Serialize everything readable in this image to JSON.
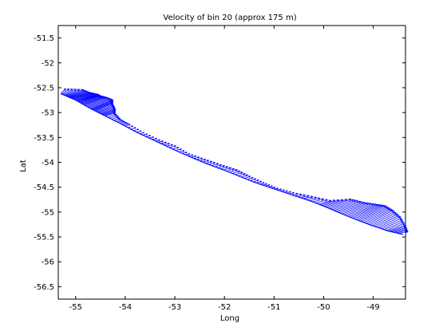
{
  "chart_data": {
    "type": "quiver",
    "title": "Velocity of bin 20 (approx 175 m)",
    "xlabel": "Long",
    "ylabel": "Lat",
    "xlim": [
      -55.35,
      -48.35
    ],
    "ylim": [
      -56.75,
      -51.25
    ],
    "xticks": [
      -55,
      -54,
      -53,
      -52,
      -51,
      -50,
      -49
    ],
    "yticks": [
      -51.5,
      -52,
      -52.5,
      -53,
      -53.5,
      -54,
      -54.5,
      -55,
      -55.5,
      -56,
      -56.5
    ],
    "grid": false,
    "legend": "none",
    "series": [
      {
        "color": "#0000ff",
        "track": [
          [
            -55.3,
            -52.62
          ],
          [
            -55.0,
            -52.75
          ],
          [
            -54.7,
            -52.92
          ],
          [
            -54.4,
            -53.07
          ],
          [
            -54.1,
            -53.22
          ],
          [
            -53.8,
            -53.38
          ],
          [
            -53.5,
            -53.52
          ],
          [
            -53.2,
            -53.66
          ],
          [
            -52.9,
            -53.8
          ],
          [
            -52.6,
            -53.93
          ],
          [
            -52.3,
            -54.05
          ],
          [
            -52.0,
            -54.16
          ],
          [
            -51.7,
            -54.28
          ],
          [
            -51.4,
            -54.4
          ],
          [
            -51.1,
            -54.5
          ],
          [
            -50.8,
            -54.6
          ],
          [
            -50.5,
            -54.7
          ],
          [
            -50.2,
            -54.8
          ],
          [
            -49.9,
            -54.92
          ],
          [
            -49.6,
            -55.05
          ],
          [
            -49.3,
            -55.17
          ],
          [
            -49.0,
            -55.28
          ],
          [
            -48.7,
            -55.38
          ],
          [
            -48.4,
            -55.45
          ]
        ],
        "vectors": [
          [
            -55.3,
            -52.62,
            0.1,
            0.1
          ],
          [
            -55.2,
            -52.66,
            0.35,
            0.12
          ],
          [
            -55.1,
            -52.7,
            0.4,
            0.1
          ],
          [
            -55.0,
            -52.75,
            0.45,
            0.12
          ],
          [
            -54.9,
            -52.8,
            0.4,
            0.14
          ],
          [
            -54.8,
            -52.85,
            0.42,
            0.16
          ],
          [
            -54.7,
            -52.92,
            0.45,
            0.18
          ],
          [
            -54.6,
            -52.96,
            0.35,
            0.14
          ],
          [
            -54.5,
            -53.02,
            0.3,
            0.1
          ],
          [
            -54.4,
            -53.07,
            0.2,
            0.06
          ],
          [
            -54.2,
            -53.18,
            0.12,
            0.04
          ],
          [
            -54.0,
            -53.27,
            0.1,
            0.03
          ],
          [
            -53.7,
            -53.42,
            0.08,
            0.02
          ],
          [
            -53.4,
            -53.57,
            0.1,
            0.02
          ],
          [
            -53.1,
            -53.7,
            0.12,
            0.03
          ],
          [
            -52.8,
            -53.85,
            0.1,
            0.02
          ],
          [
            -52.5,
            -53.97,
            0.12,
            0.03
          ],
          [
            -52.2,
            -54.09,
            0.14,
            0.04
          ],
          [
            -51.9,
            -54.2,
            0.16,
            0.05
          ],
          [
            -51.6,
            -54.32,
            0.12,
            0.04
          ],
          [
            -51.3,
            -54.44,
            0.1,
            0.03
          ],
          [
            -51.0,
            -54.54,
            0.08,
            0.02
          ],
          [
            -50.7,
            -54.64,
            0.1,
            0.03
          ],
          [
            -50.4,
            -54.73,
            0.18,
            0.04
          ],
          [
            -50.1,
            -54.84,
            0.25,
            0.07
          ],
          [
            -49.9,
            -54.92,
            0.45,
            0.18
          ],
          [
            -49.7,
            -55.0,
            0.5,
            0.2
          ],
          [
            -49.5,
            -55.09,
            0.55,
            0.25
          ],
          [
            -49.3,
            -55.17,
            0.55,
            0.3
          ],
          [
            -49.1,
            -55.24,
            0.5,
            0.28
          ],
          [
            -48.9,
            -55.31,
            0.45,
            0.22
          ],
          [
            -48.7,
            -55.38,
            0.35,
            0.12
          ],
          [
            -48.5,
            -55.43,
            0.2,
            0.04
          ]
        ]
      }
    ]
  }
}
